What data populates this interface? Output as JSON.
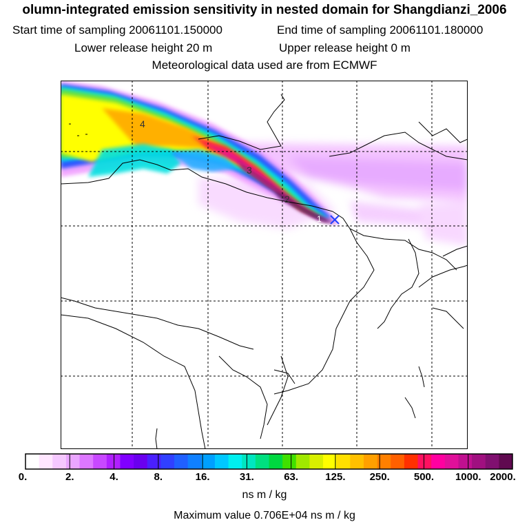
{
  "header": {
    "title": "olumn-integrated emission sensitivity in nested domain for Shangdianzi_2006",
    "start_label": "Start time of sampling 20061101.150000",
    "end_label": "End time of sampling 20061101.180000",
    "lower_label": "Lower release height   20 m",
    "upper_label": "Upper release height    0 m",
    "met_label": "Meteorological data used are from ECMWF"
  },
  "map": {
    "contour_labels": [
      "4",
      "3",
      "2",
      "1"
    ],
    "station_marker": "cross",
    "colors": {
      "grid": "#000000",
      "coast": "#000000",
      "plume_core": "#3a0a3a",
      "plume_high": "#e0107a",
      "plume_mid": "#ffa500",
      "plume_low": "#ffff00",
      "plume_green": "#33dd33",
      "plume_cyan": "#00e6e6",
      "background_field": "#ee99ff"
    }
  },
  "colorbar": {
    "tick_labels": [
      "0.",
      "2.",
      "4.",
      "8.",
      "16.",
      "31.",
      "63.",
      "125.",
      "250.",
      "500.",
      "1000.",
      "2000."
    ],
    "colors": [
      "#ffffff",
      "#ffe6ff",
      "#f5c8ff",
      "#eaa6ff",
      "#dd77ff",
      "#c848ff",
      "#b020ff",
      "#8000ff",
      "#6a00ee",
      "#4a20ff",
      "#3040ff",
      "#2060ff",
      "#1080ff",
      "#00a0ff",
      "#00c8ff",
      "#00f0f0",
      "#00e6c0",
      "#00e080",
      "#00d840",
      "#40e000",
      "#a0e800",
      "#d8f000",
      "#ffff00",
      "#ffe000",
      "#ffc000",
      "#ffa000",
      "#ff8000",
      "#ff6000",
      "#ff3000",
      "#ff1060",
      "#ff00a0",
      "#e0109a",
      "#c01090",
      "#a01080",
      "#801070",
      "#600a50"
    ],
    "unit": "ns m / kg",
    "max_value": "Maximum value  0.706E+04 ns m / kg"
  }
}
